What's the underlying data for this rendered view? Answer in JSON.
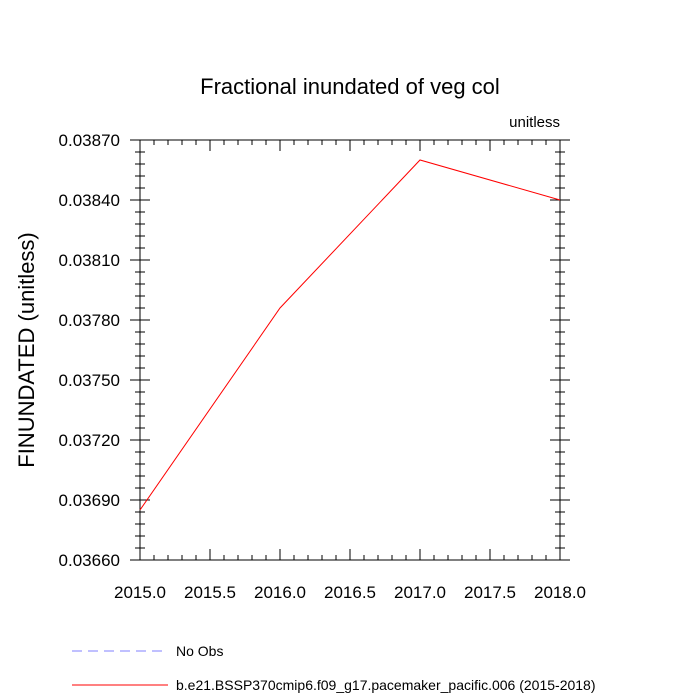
{
  "chart_data": {
    "type": "line",
    "title": "Fractional inundated of veg col",
    "units_label": "unitless",
    "ylabel": "FINUNDATED  (unitless)",
    "xlabel": "",
    "xlim": [
      2015.0,
      2018.0
    ],
    "ylim": [
      0.0366,
      0.0387
    ],
    "x_ticks": [
      "2015.0",
      "2015.5",
      "2016.0",
      "2016.5",
      "2017.0",
      "2017.5",
      "2018.0"
    ],
    "y_ticks": [
      "0.03660",
      "0.03690",
      "0.03720",
      "0.03750",
      "0.03780",
      "0.03810",
      "0.03840",
      "0.03870"
    ],
    "grid": false,
    "legend_position": "bottom-left",
    "series": [
      {
        "name": "b.e21.BSSP370cmip6.f09_g17.pacemaker_pacific.006 (2015-2018)",
        "color": "#ff0000",
        "style": "solid",
        "x": [
          2015,
          2016,
          2017,
          2018
        ],
        "y": [
          0.03685,
          0.03786,
          0.0386,
          0.0384
        ]
      }
    ],
    "legend": [
      {
        "label": "No Obs",
        "color": "#8080ff",
        "style": "dashed"
      },
      {
        "label": "b.e21.BSSP370cmip6.f09_g17.pacemaker_pacific.006 (2015-2018)",
        "color": "#ff0000",
        "style": "solid"
      }
    ]
  }
}
